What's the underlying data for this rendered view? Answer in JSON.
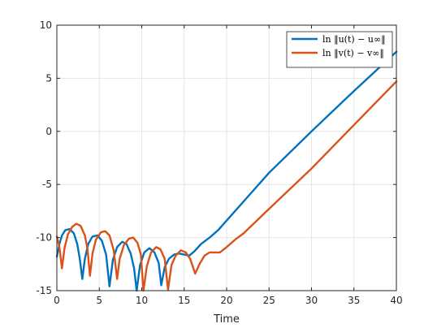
{
  "chart_data": {
    "type": "line",
    "xlabel": "Time",
    "ylabel": "",
    "xlim": [
      0,
      40
    ],
    "ylim": [
      -15,
      10
    ],
    "xticks": [
      0,
      5,
      10,
      15,
      20,
      25,
      30,
      35,
      40
    ],
    "yticks": [
      -15,
      -10,
      -5,
      0,
      5,
      10
    ],
    "grid": true,
    "legend_placement": "top-right",
    "series": [
      {
        "name": "ln ‖u(t) − u∞‖",
        "color": "#0072BD",
        "points": [
          [
            0,
            -11.8
          ],
          [
            0.3,
            -10.6
          ],
          [
            0.6,
            -9.8
          ],
          [
            1.0,
            -9.3
          ],
          [
            1.5,
            -9.2
          ],
          [
            2.0,
            -9.6
          ],
          [
            2.4,
            -10.6
          ],
          [
            2.7,
            -12.0
          ],
          [
            3.0,
            -13.9
          ],
          [
            3.3,
            -12.0
          ],
          [
            3.7,
            -10.6
          ],
          [
            4.2,
            -9.9
          ],
          [
            4.8,
            -9.8
          ],
          [
            5.3,
            -10.3
          ],
          [
            5.8,
            -11.6
          ],
          [
            6.2,
            -14.6
          ],
          [
            6.6,
            -12.1
          ],
          [
            7.1,
            -10.9
          ],
          [
            7.7,
            -10.4
          ],
          [
            8.2,
            -10.6
          ],
          [
            8.7,
            -11.5
          ],
          [
            9.1,
            -12.9
          ],
          [
            9.4,
            -15.0
          ],
          [
            9.8,
            -12.6
          ],
          [
            10.3,
            -11.4
          ],
          [
            10.9,
            -11.0
          ],
          [
            11.5,
            -11.4
          ],
          [
            12.0,
            -12.4
          ],
          [
            12.3,
            -14.5
          ],
          [
            12.7,
            -12.8
          ],
          [
            13.2,
            -12.0
          ],
          [
            13.8,
            -11.6
          ],
          [
            14.4,
            -11.5
          ],
          [
            15.0,
            -11.6
          ],
          [
            15.6,
            -11.7
          ],
          [
            16.2,
            -11.3
          ],
          [
            17.0,
            -10.6
          ],
          [
            18.0,
            -10.0
          ],
          [
            19.0,
            -9.3
          ],
          [
            20.0,
            -8.4
          ],
          [
            22.0,
            -6.6
          ],
          [
            25.0,
            -3.9
          ],
          [
            30.0,
            0.0
          ],
          [
            35.0,
            3.8
          ],
          [
            40.0,
            7.5
          ]
        ]
      },
      {
        "name": "ln ‖v(t) − v∞‖",
        "color": "#D95319",
        "points": [
          [
            0,
            -9.9
          ],
          [
            0.3,
            -10.9
          ],
          [
            0.6,
            -12.9
          ],
          [
            0.9,
            -11.0
          ],
          [
            1.3,
            -9.7
          ],
          [
            1.8,
            -9.0
          ],
          [
            2.3,
            -8.7
          ],
          [
            2.8,
            -8.9
          ],
          [
            3.3,
            -9.8
          ],
          [
            3.6,
            -11.0
          ],
          [
            3.9,
            -13.6
          ],
          [
            4.2,
            -11.5
          ],
          [
            4.6,
            -10.2
          ],
          [
            5.2,
            -9.5
          ],
          [
            5.7,
            -9.4
          ],
          [
            6.2,
            -9.8
          ],
          [
            6.7,
            -11.2
          ],
          [
            7.1,
            -13.9
          ],
          [
            7.4,
            -12.0
          ],
          [
            7.9,
            -10.7
          ],
          [
            8.5,
            -10.1
          ],
          [
            9.0,
            -10.0
          ],
          [
            9.5,
            -10.5
          ],
          [
            9.9,
            -11.6
          ],
          [
            10.2,
            -15.0
          ],
          [
            10.6,
            -12.7
          ],
          [
            11.1,
            -11.4
          ],
          [
            11.7,
            -10.9
          ],
          [
            12.2,
            -11.1
          ],
          [
            12.7,
            -12.0
          ],
          [
            13.1,
            -14.9
          ],
          [
            13.5,
            -12.6
          ],
          [
            14.0,
            -11.7
          ],
          [
            14.6,
            -11.2
          ],
          [
            15.2,
            -11.4
          ],
          [
            15.7,
            -12.0
          ],
          [
            16.0,
            -12.7
          ],
          [
            16.3,
            -13.4
          ],
          [
            16.8,
            -12.5
          ],
          [
            17.4,
            -11.7
          ],
          [
            18.0,
            -11.4
          ],
          [
            18.6,
            -11.4
          ],
          [
            19.2,
            -11.4
          ],
          [
            20.0,
            -10.9
          ],
          [
            21.0,
            -10.2
          ],
          [
            22.0,
            -9.6
          ],
          [
            25.0,
            -7.3
          ],
          [
            30.0,
            -3.5
          ],
          [
            35.0,
            0.6
          ],
          [
            40.0,
            4.7
          ]
        ]
      }
    ]
  }
}
